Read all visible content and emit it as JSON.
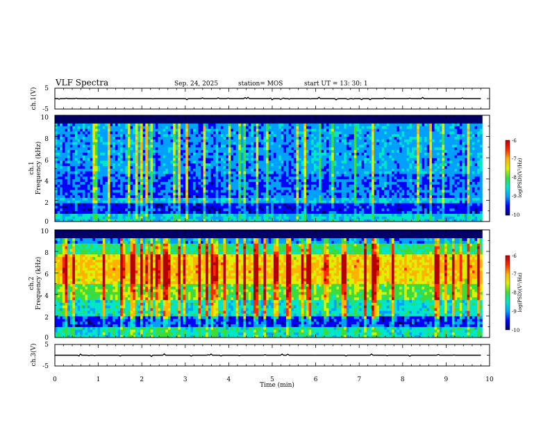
{
  "header": {
    "title": "VLF Spectra",
    "date": "Sep. 24, 2025",
    "station": "station= MOS",
    "start": "start  UT =   13: 30: 1"
  },
  "colors": {
    "spectrogram_scale": [
      "#000066",
      "#0000ff",
      "#00a0ff",
      "#00e6c8",
      "#3cdc3c",
      "#dcf000",
      "#ffb400",
      "#ff2800",
      "#b40000"
    ]
  },
  "chart_data": [
    {
      "type": "line",
      "name": "ch1-waveform",
      "ylabel": "ch.1(V)",
      "ylim": [
        -5,
        5
      ],
      "yticks": [
        "5",
        "-5"
      ],
      "baseline": 0,
      "xlim": [
        0,
        10
      ]
    },
    {
      "type": "heatmap",
      "name": "ch1-spectrogram",
      "ylabel_lines": [
        "ch.1",
        "Frequency (kHz)"
      ],
      "ylim": [
        0,
        10
      ],
      "yticks": [
        "0",
        "2",
        "4",
        "6",
        "8",
        "10"
      ],
      "xlim": [
        0,
        10
      ],
      "data_end_min": 9.83,
      "colorbar": {
        "label": "log(PSD)(V²/Hz)",
        "range": [
          -10,
          -6
        ],
        "ticks": [
          "-6",
          "-7",
          "-8",
          "-9",
          "-10"
        ]
      }
    },
    {
      "type": "heatmap",
      "name": "ch2-spectrogram",
      "ylabel_lines": [
        "ch.2",
        "Frequency (kHz)"
      ],
      "ylim": [
        0,
        10
      ],
      "yticks": [
        "0",
        "2",
        "4",
        "6",
        "8",
        "10"
      ],
      "xlim": [
        0,
        10
      ],
      "data_end_min": 9.83,
      "colorbar": {
        "label": "log(PSD)(V²/Hz)",
        "range": [
          -10,
          -6
        ],
        "ticks": [
          "-6",
          "-7",
          "-8",
          "-9",
          "-10"
        ]
      }
    },
    {
      "type": "line",
      "name": "ch3-waveform",
      "ylabel": "ch.3(V)",
      "ylim": [
        -5,
        5
      ],
      "yticks": [
        "5",
        "-5"
      ],
      "baseline": 0,
      "xlim": [
        0,
        10
      ]
    }
  ],
  "xaxis": {
    "label": "Time  (min)",
    "ticks": [
      "0",
      "1",
      "2",
      "3",
      "4",
      "5",
      "6",
      "7",
      "8",
      "9",
      "10"
    ]
  }
}
